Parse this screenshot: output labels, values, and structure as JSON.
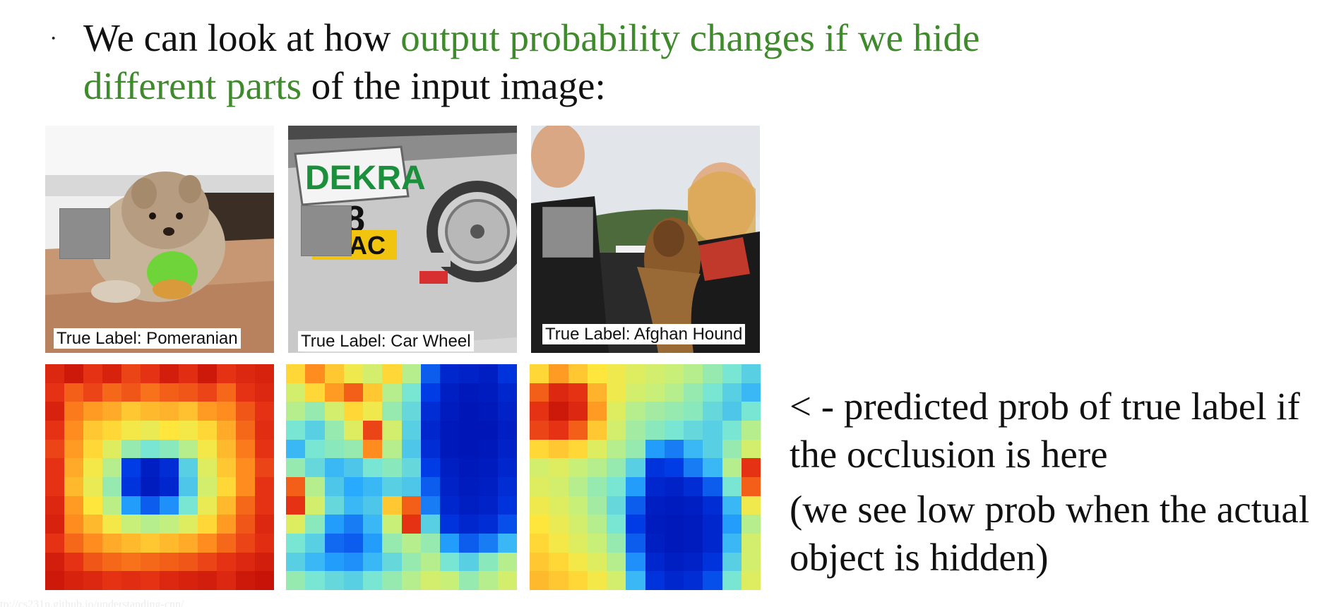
{
  "headline": {
    "prefix": "We can look at how ",
    "highlight": "output probability changes if we hide different parts",
    "suffix": " of the input image:"
  },
  "colors": {
    "highlight": "#3f8a2c",
    "occluder": "#8c8c8c",
    "heatmap_low": "#0010b0",
    "heatmap_high": "#c00000"
  },
  "examples": [
    {
      "label": "True Label: Pomeranian",
      "subject": "pomeranian-photo",
      "heatmap": [
        [
          0.92,
          0.95,
          0.9,
          0.93,
          0.88,
          0.9,
          0.94,
          0.91,
          0.95,
          0.9,
          0.92,
          0.93
        ],
        [
          0.9,
          0.85,
          0.88,
          0.84,
          0.86,
          0.83,
          0.85,
          0.86,
          0.88,
          0.84,
          0.9,
          0.92
        ],
        [
          0.93,
          0.82,
          0.78,
          0.76,
          0.72,
          0.74,
          0.75,
          0.73,
          0.78,
          0.8,
          0.86,
          0.9
        ],
        [
          0.9,
          0.8,
          0.72,
          0.7,
          0.66,
          0.64,
          0.68,
          0.66,
          0.7,
          0.76,
          0.84,
          0.91
        ],
        [
          0.88,
          0.78,
          0.7,
          0.62,
          0.5,
          0.45,
          0.48,
          0.55,
          0.66,
          0.74,
          0.82,
          0.9
        ],
        [
          0.9,
          0.76,
          0.66,
          0.55,
          0.15,
          0.05,
          0.1,
          0.4,
          0.62,
          0.72,
          0.8,
          0.88
        ],
        [
          0.9,
          0.74,
          0.64,
          0.5,
          0.12,
          0.04,
          0.08,
          0.38,
          0.6,
          0.7,
          0.8,
          0.9
        ],
        [
          0.92,
          0.78,
          0.68,
          0.56,
          0.3,
          0.2,
          0.28,
          0.45,
          0.64,
          0.74,
          0.84,
          0.9
        ],
        [
          0.93,
          0.8,
          0.74,
          0.66,
          0.58,
          0.55,
          0.57,
          0.62,
          0.7,
          0.78,
          0.86,
          0.92
        ],
        [
          0.9,
          0.84,
          0.8,
          0.76,
          0.74,
          0.72,
          0.74,
          0.76,
          0.8,
          0.84,
          0.88,
          0.91
        ],
        [
          0.94,
          0.9,
          0.86,
          0.84,
          0.83,
          0.84,
          0.85,
          0.86,
          0.88,
          0.9,
          0.92,
          0.94
        ],
        [
          0.95,
          0.93,
          0.92,
          0.9,
          0.91,
          0.9,
          0.92,
          0.93,
          0.94,
          0.92,
          0.95,
          0.96
        ]
      ]
    },
    {
      "label": "True Label: Car Wheel",
      "subject": "car-wheel-photo",
      "heatmap": [
        [
          0.7,
          0.8,
          0.72,
          0.65,
          0.6,
          0.7,
          0.55,
          0.2,
          0.08,
          0.06,
          0.05,
          0.12
        ],
        [
          0.6,
          0.7,
          0.78,
          0.85,
          0.72,
          0.55,
          0.45,
          0.15,
          0.05,
          0.03,
          0.04,
          0.08
        ],
        [
          0.55,
          0.5,
          0.6,
          0.7,
          0.65,
          0.5,
          0.42,
          0.1,
          0.04,
          0.02,
          0.03,
          0.06
        ],
        [
          0.45,
          0.4,
          0.5,
          0.62,
          0.88,
          0.6,
          0.4,
          0.08,
          0.03,
          0.02,
          0.02,
          0.05
        ],
        [
          0.35,
          0.45,
          0.48,
          0.5,
          0.8,
          0.55,
          0.38,
          0.1,
          0.03,
          0.02,
          0.03,
          0.06
        ],
        [
          0.5,
          0.42,
          0.35,
          0.38,
          0.45,
          0.48,
          0.42,
          0.15,
          0.05,
          0.03,
          0.04,
          0.08
        ],
        [
          0.85,
          0.55,
          0.38,
          0.32,
          0.35,
          0.4,
          0.38,
          0.2,
          0.06,
          0.04,
          0.05,
          0.1
        ],
        [
          0.9,
          0.6,
          0.42,
          0.35,
          0.38,
          0.72,
          0.85,
          0.25,
          0.08,
          0.05,
          0.06,
          0.12
        ],
        [
          0.62,
          0.48,
          0.3,
          0.25,
          0.35,
          0.58,
          0.9,
          0.4,
          0.12,
          0.08,
          0.1,
          0.18
        ],
        [
          0.45,
          0.4,
          0.22,
          0.2,
          0.3,
          0.5,
          0.55,
          0.5,
          0.3,
          0.2,
          0.25,
          0.35
        ],
        [
          0.4,
          0.35,
          0.3,
          0.28,
          0.35,
          0.42,
          0.5,
          0.55,
          0.45,
          0.4,
          0.48,
          0.55
        ],
        [
          0.5,
          0.45,
          0.42,
          0.4,
          0.45,
          0.5,
          0.55,
          0.6,
          0.58,
          0.5,
          0.55,
          0.6
        ]
      ]
    },
    {
      "label": "True Label: Afghan Hound",
      "subject": "afghan-hound-photo",
      "heatmap": [
        [
          0.7,
          0.78,
          0.72,
          0.68,
          0.65,
          0.62,
          0.6,
          0.58,
          0.55,
          0.5,
          0.45,
          0.4
        ],
        [
          0.85,
          0.92,
          0.9,
          0.75,
          0.65,
          0.6,
          0.58,
          0.55,
          0.5,
          0.45,
          0.4,
          0.35
        ],
        [
          0.9,
          0.95,
          0.92,
          0.78,
          0.62,
          0.55,
          0.52,
          0.5,
          0.48,
          0.42,
          0.38,
          0.45
        ],
        [
          0.88,
          0.9,
          0.85,
          0.72,
          0.6,
          0.52,
          0.48,
          0.45,
          0.42,
          0.4,
          0.45,
          0.55
        ],
        [
          0.7,
          0.72,
          0.7,
          0.62,
          0.55,
          0.5,
          0.3,
          0.25,
          0.35,
          0.4,
          0.5,
          0.6
        ],
        [
          0.6,
          0.62,
          0.58,
          0.55,
          0.5,
          0.4,
          0.12,
          0.15,
          0.25,
          0.35,
          0.55,
          0.9
        ],
        [
          0.62,
          0.6,
          0.55,
          0.5,
          0.45,
          0.3,
          0.08,
          0.06,
          0.1,
          0.2,
          0.45,
          0.85
        ],
        [
          0.65,
          0.62,
          0.58,
          0.52,
          0.42,
          0.2,
          0.05,
          0.04,
          0.05,
          0.1,
          0.35,
          0.65
        ],
        [
          0.68,
          0.64,
          0.6,
          0.55,
          0.45,
          0.15,
          0.04,
          0.03,
          0.04,
          0.08,
          0.3,
          0.55
        ],
        [
          0.7,
          0.66,
          0.62,
          0.58,
          0.5,
          0.2,
          0.05,
          0.03,
          0.04,
          0.08,
          0.35,
          0.6
        ],
        [
          0.72,
          0.7,
          0.66,
          0.62,
          0.55,
          0.28,
          0.08,
          0.05,
          0.06,
          0.12,
          0.4,
          0.6
        ],
        [
          0.74,
          0.72,
          0.7,
          0.66,
          0.6,
          0.35,
          0.12,
          0.08,
          0.1,
          0.18,
          0.45,
          0.62
        ]
      ]
    }
  ],
  "caption": {
    "line1": "< - predicted prob of true label if the occlusion is here",
    "line2": "(we see low prob when the actual object is hidden)"
  },
  "source_url": "tp://cs231n.github.io/understanding-cnn/"
}
